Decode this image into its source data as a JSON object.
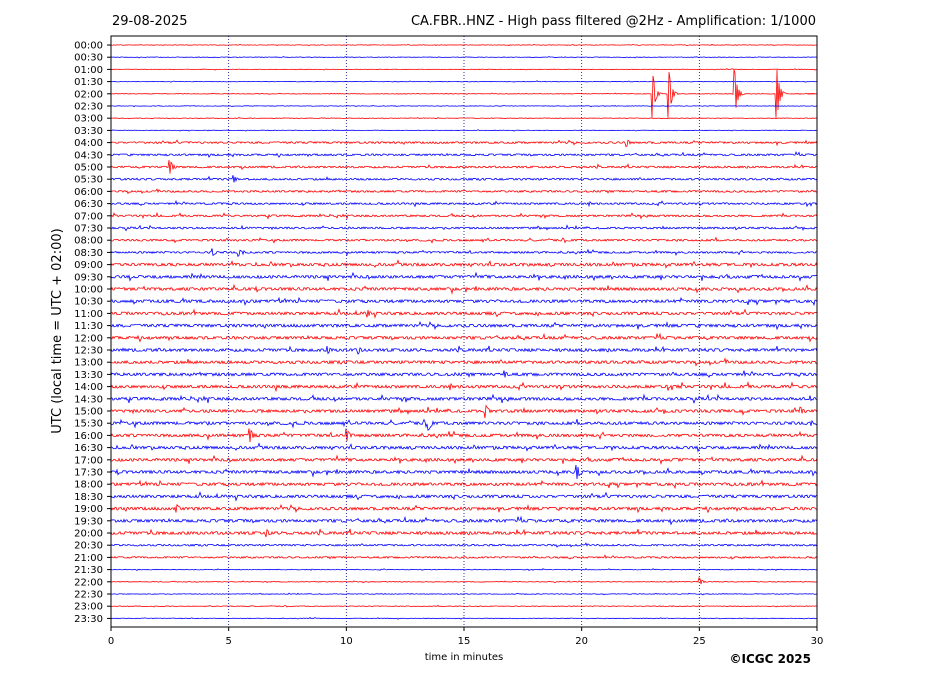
{
  "header": {
    "date": "29-08-2025",
    "title": "CA.FBR..HNZ - High pass filtered @2Hz - Amplification: 1/1000"
  },
  "footer": {
    "copyright": "©ICGC 2025"
  },
  "chart_data": {
    "type": "line",
    "title": "CA.FBR..HNZ - High pass filtered @2Hz - Amplification: 1/1000",
    "xlabel": "time in minutes",
    "ylabel": "UTC (local time = UTC + 02:00)",
    "xlim": [
      0,
      30
    ],
    "x_ticks": [
      0,
      5,
      10,
      15,
      20,
      25,
      30
    ],
    "y_ticks": [
      "00:00",
      "00:30",
      "01:00",
      "01:30",
      "02:00",
      "02:30",
      "03:00",
      "03:30",
      "04:00",
      "04:30",
      "05:00",
      "05:30",
      "06:00",
      "06:30",
      "07:00",
      "07:30",
      "08:00",
      "08:30",
      "09:00",
      "09:30",
      "10:00",
      "10:30",
      "11:00",
      "11:30",
      "12:00",
      "12:30",
      "13:00",
      "13:30",
      "14:00",
      "14:30",
      "15:00",
      "15:30",
      "16:00",
      "16:30",
      "17:00",
      "17:30",
      "18:00",
      "18:30",
      "19:00",
      "19:30",
      "20:00",
      "20:30",
      "21:00",
      "21:30",
      "22:00",
      "22:30",
      "23:00",
      "23:30"
    ],
    "grid": "vertical dotted at 5-minute intervals",
    "colors": {
      "even_rows": "#ff0000",
      "odd_rows": "#0000ff",
      "grid": "#00008b"
    },
    "events": [
      {
        "row": "02:00",
        "minute": 23.0,
        "amplitude": "large"
      },
      {
        "row": "02:00",
        "minute": 23.7,
        "amplitude": "large"
      },
      {
        "row": "02:00",
        "minute": 26.5,
        "amplitude": "large"
      },
      {
        "row": "02:00",
        "minute": 28.3,
        "amplitude": "large"
      },
      {
        "row": "04:00",
        "minute": 21.9,
        "amplitude": "small"
      },
      {
        "row": "05:00",
        "minute": 2.5,
        "amplitude": "medium"
      },
      {
        "row": "05:30",
        "minute": 5.2,
        "amplitude": "small"
      },
      {
        "row": "08:30",
        "minute": 4.3,
        "amplitude": "small"
      },
      {
        "row": "08:30",
        "minute": 5.4,
        "amplitude": "small"
      },
      {
        "row": "11:00",
        "minute": 10.9,
        "amplitude": "small"
      },
      {
        "row": "12:30",
        "minute": 9.2,
        "amplitude": "small"
      },
      {
        "row": "12:30",
        "minute": 10.5,
        "amplitude": "small"
      },
      {
        "row": "13:30",
        "minute": 16.7,
        "amplitude": "small"
      },
      {
        "row": "15:00",
        "minute": 15.9,
        "amplitude": "medium"
      },
      {
        "row": "15:00",
        "minute": 29.3,
        "amplitude": "small"
      },
      {
        "row": "15:30",
        "minute": 13.5,
        "amplitude": "medium"
      },
      {
        "row": "16:00",
        "minute": 5.9,
        "amplitude": "medium"
      },
      {
        "row": "16:00",
        "minute": 10.0,
        "amplitude": "medium"
      },
      {
        "row": "17:30",
        "minute": 19.8,
        "amplitude": "medium"
      },
      {
        "row": "19:00",
        "minute": 2.8,
        "amplitude": "small"
      },
      {
        "row": "20:00",
        "minute": 6.6,
        "amplitude": "small"
      },
      {
        "row": "22:00",
        "minute": 25.0,
        "amplitude": "small"
      }
    ]
  }
}
